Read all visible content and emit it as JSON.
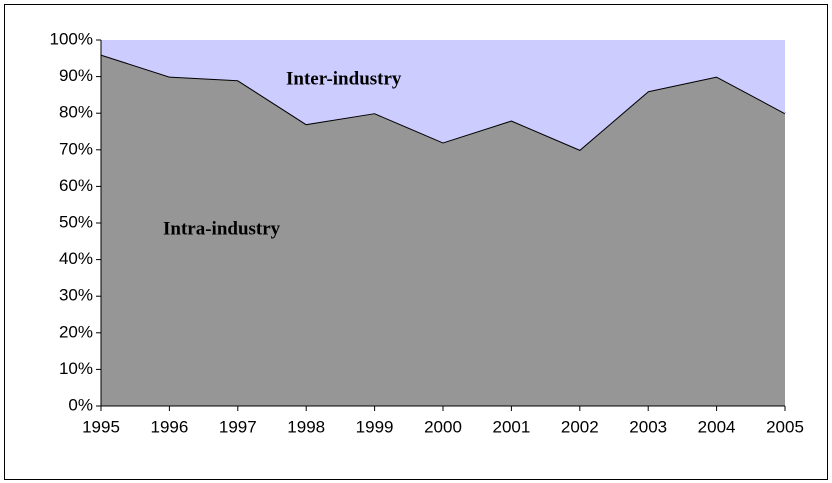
{
  "chart_data": {
    "type": "stacked_area",
    "categories": [
      "1995",
      "1996",
      "1997",
      "1998",
      "1999",
      "2000",
      "2001",
      "2002",
      "2003",
      "2004",
      "2005"
    ],
    "series": [
      {
        "name": "Intra-industry",
        "color": "#969696",
        "values": [
          96,
          90,
          89,
          77,
          80,
          72,
          78,
          70,
          86,
          90,
          80
        ]
      },
      {
        "name": "Inter-industry",
        "color": "#ccccff",
        "values": [
          4,
          10,
          11,
          23,
          20,
          28,
          22,
          30,
          14,
          10,
          20
        ]
      }
    ],
    "ylim": [
      0,
      100
    ],
    "yticks": [
      {
        "value": 0,
        "label": "0%"
      },
      {
        "value": 10,
        "label": "10%"
      },
      {
        "value": 20,
        "label": "20%"
      },
      {
        "value": 30,
        "label": "30%"
      },
      {
        "value": 40,
        "label": "40%"
      },
      {
        "value": 50,
        "label": "50%"
      },
      {
        "value": 60,
        "label": "60%"
      },
      {
        "value": 70,
        "label": "70%"
      },
      {
        "value": 80,
        "label": "80%"
      },
      {
        "value": 90,
        "label": "90%"
      },
      {
        "value": 100,
        "label": "100%"
      }
    ],
    "grid": false
  }
}
